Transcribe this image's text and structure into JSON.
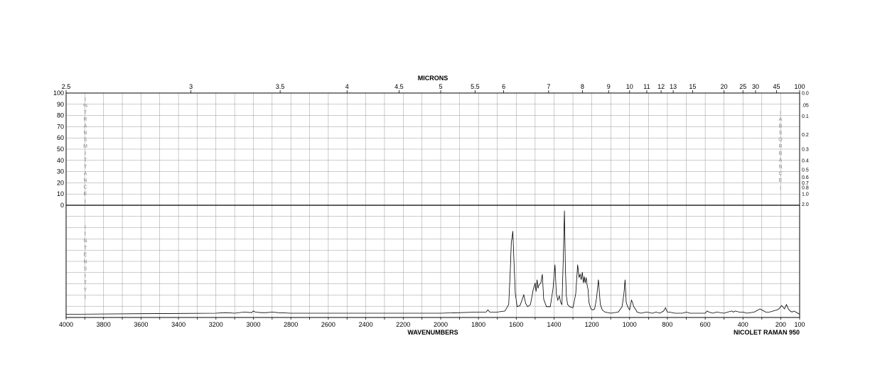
{
  "chart_data": {
    "type": "line",
    "title": "",
    "xlabel": "WAVENUMBERS",
    "top_xlabel": "MICRONS",
    "instrument": "NICOLET RAMAN 950",
    "xlim": [
      4000,
      100
    ],
    "x_ticks": [
      4000,
      3800,
      3600,
      3400,
      3200,
      3000,
      2800,
      2600,
      2400,
      2200,
      2000,
      1800,
      1600,
      1400,
      1200,
      1000,
      800,
      600,
      400,
      200,
      100
    ],
    "micron_ticks": [
      2.5,
      3,
      3.5,
      4,
      4.5,
      5,
      5.5,
      6,
      7,
      8,
      9,
      10,
      11,
      12,
      13,
      15,
      20,
      25,
      30,
      45,
      100
    ],
    "transmittance_label": "%TRANSMITTANCE",
    "transmittance_ticks": [
      100,
      90,
      80,
      70,
      60,
      50,
      40,
      30,
      20,
      10,
      0
    ],
    "absorbance_label": "ABSORBANCE",
    "absorbance_ticks": [
      "0.0",
      ".05",
      "0.1",
      "0.2",
      "0.3",
      "0.4",
      "0.5",
      "0.6",
      "0.7",
      "0.8",
      "1.0",
      "2.0"
    ],
    "intensity_label": "INTENSITY",
    "grid": true,
    "series": [
      {
        "x": [
          4000,
          3600,
          3200,
          3150,
          3100,
          3050,
          3010,
          3000,
          2990,
          2960,
          2930,
          2900,
          2870,
          2800,
          2400,
          2000,
          1800,
          1760,
          1750,
          1740,
          1700,
          1660,
          1640,
          1632,
          1626,
          1622,
          1618,
          1612,
          1605,
          1595,
          1580,
          1570,
          1560,
          1550,
          1540,
          1525,
          1510,
          1500,
          1495,
          1490,
          1485,
          1480,
          1470,
          1462,
          1455,
          1440,
          1420,
          1405,
          1395,
          1388,
          1380,
          1372,
          1365,
          1358,
          1350,
          1345,
          1340,
          1335,
          1328,
          1318,
          1300,
          1285,
          1275,
          1268,
          1262,
          1256,
          1250,
          1245,
          1240,
          1235,
          1230,
          1225,
          1220,
          1215,
          1205,
          1195,
          1185,
          1175,
          1165,
          1155,
          1145,
          1130,
          1100,
          1060,
          1040,
          1030,
          1024,
          1018,
          1010,
          1000,
          990,
          985,
          978,
          970,
          960,
          940,
          910,
          880,
          860,
          840,
          820,
          810,
          800,
          790,
          760,
          720,
          700,
          680,
          640,
          600,
          590,
          580,
          560,
          540,
          500,
          480,
          460,
          450,
          440,
          420,
          400,
          380,
          340,
          310,
          300,
          290,
          280,
          260,
          240,
          220,
          210,
          195,
          180,
          170,
          160,
          150,
          140,
          130,
          120,
          110,
          100
        ],
        "y": [
          1,
          1.5,
          2,
          2.5,
          2,
          3,
          2.5,
          4,
          3,
          2.5,
          2.5,
          3,
          2.5,
          2,
          2,
          2,
          3,
          3,
          5,
          3,
          3,
          4,
          10,
          40,
          68,
          72,
          78,
          50,
          20,
          8,
          9,
          14,
          19,
          11,
          8,
          10,
          24,
          30,
          22,
          33,
          25,
          28,
          30,
          38,
          15,
          8,
          8,
          25,
          47,
          20,
          14,
          18,
          12,
          10,
          60,
          97,
          45,
          18,
          10,
          8,
          7,
          20,
          47,
          35,
          38,
          33,
          40,
          30,
          36,
          30,
          35,
          28,
          24,
          12,
          6,
          5,
          6,
          16,
          33,
          10,
          5,
          3,
          2,
          3,
          8,
          20,
          33,
          12,
          8,
          5,
          14,
          12,
          8,
          6,
          3,
          2,
          3,
          2,
          3,
          2,
          4,
          7,
          3,
          3,
          2,
          2,
          3,
          2,
          2,
          2,
          4,
          3,
          2,
          3,
          2,
          3,
          4,
          3,
          4,
          3,
          3,
          2,
          3,
          6,
          5,
          4,
          3,
          3,
          4,
          5,
          6,
          9,
          6,
          10,
          6,
          4,
          3,
          4,
          3,
          2,
          1
        ]
      }
    ]
  }
}
